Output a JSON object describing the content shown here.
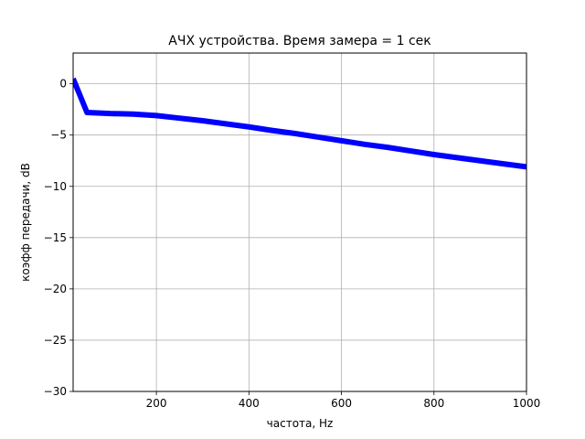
{
  "chart_data": {
    "type": "line",
    "title": "АЧХ устройства. Время замера = 1 сек",
    "xlabel": "частота, Hz",
    "ylabel": "коэфф передачи, dB",
    "xlim": [
      20,
      1000
    ],
    "ylim": [
      -30,
      3
    ],
    "xticks": [
      200,
      400,
      600,
      800,
      1000
    ],
    "yticks": [
      0,
      -5,
      -10,
      -15,
      -20,
      -25,
      -30
    ],
    "grid": true,
    "series": [
      {
        "color": "#0000ff",
        "x": [
          20,
          50,
          100,
          150,
          200,
          250,
          300,
          350,
          400,
          450,
          500,
          550,
          600,
          650,
          700,
          750,
          800,
          850,
          900,
          950,
          1000
        ],
        "y": [
          0.5,
          -2.8,
          -2.9,
          -2.95,
          -3.1,
          -3.35,
          -3.6,
          -3.9,
          -4.2,
          -4.55,
          -4.85,
          -5.2,
          -5.55,
          -5.9,
          -6.2,
          -6.55,
          -6.9,
          -7.2,
          -7.5,
          -7.8,
          -8.1
        ]
      }
    ]
  }
}
